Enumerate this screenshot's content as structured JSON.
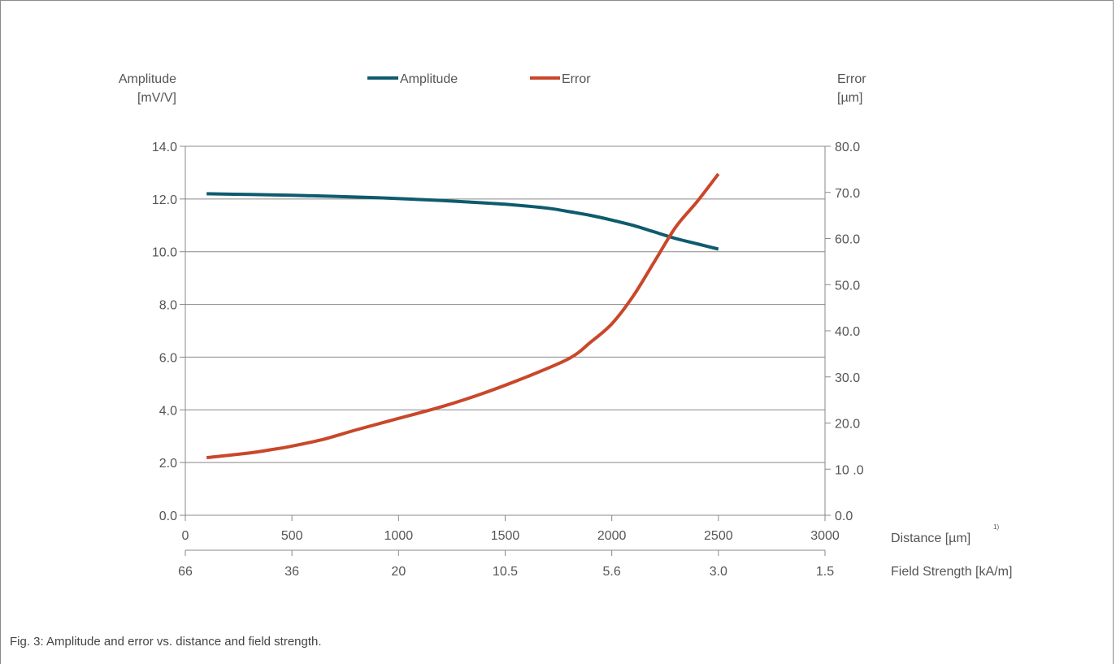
{
  "caption": "Fig. 3: Amplitude and error vs. distance and field strength.",
  "colors": {
    "amplitude": "#0e5b6e",
    "error": "#c9472a",
    "grid": "#888888",
    "text": "#555555"
  },
  "chart_data": {
    "type": "line",
    "left_axis": {
      "label_line1": "Amplitude",
      "label_line2": "[mV/V]",
      "range": [
        0,
        14
      ],
      "ticks": [
        "0.0",
        "2.0",
        "4.0",
        "6.0",
        "8.0",
        "10.0",
        "12.0",
        "14.0"
      ]
    },
    "right_axis": {
      "label_line1": "Error",
      "label_line2": "[µm]",
      "range": [
        0,
        80
      ],
      "ticks": [
        "0.0",
        "10 .0",
        "20.0",
        "30.0",
        "40.0",
        "50.0",
        "60.0",
        "70.0",
        "80.0"
      ]
    },
    "x_axis": {
      "label": "Distance [µm]",
      "footnote": "1)",
      "range": [
        0,
        3000
      ],
      "ticks": [
        "0",
        "500",
        "1000",
        "1500",
        "2000",
        "2500",
        "3000"
      ]
    },
    "x2_axis": {
      "label": "Field Strength [kA/m]",
      "ticks": [
        "66",
        "36",
        "20",
        "10.5",
        "5.6",
        "3.0",
        "1.5"
      ]
    },
    "grid": true,
    "legend": {
      "position": "top",
      "entries": [
        "Amplitude",
        "Error"
      ]
    },
    "series": [
      {
        "name": "Amplitude",
        "axis": "left",
        "x": [
          100,
          300,
          500,
          700,
          900,
          1100,
          1300,
          1500,
          1700,
          1800,
          1900,
          2000,
          2100,
          2200,
          2300,
          2400,
          2500
        ],
        "y": [
          12.2,
          12.17,
          12.14,
          12.1,
          12.05,
          11.98,
          11.9,
          11.8,
          11.65,
          11.52,
          11.38,
          11.2,
          11.0,
          10.75,
          10.5,
          10.3,
          10.1
        ]
      },
      {
        "name": "Error",
        "axis": "right",
        "x": [
          100,
          300,
          400,
          500,
          650,
          800,
          1000,
          1200,
          1400,
          1600,
          1800,
          1900,
          2000,
          2100,
          2200,
          2300,
          2400,
          2500
        ],
        "y": [
          12.5,
          13.5,
          14.2,
          15.0,
          16.5,
          18.5,
          21.0,
          23.5,
          26.5,
          30.0,
          34.0,
          37.5,
          41.5,
          47.5,
          55.0,
          62.5,
          68.0,
          74.0
        ]
      }
    ]
  }
}
